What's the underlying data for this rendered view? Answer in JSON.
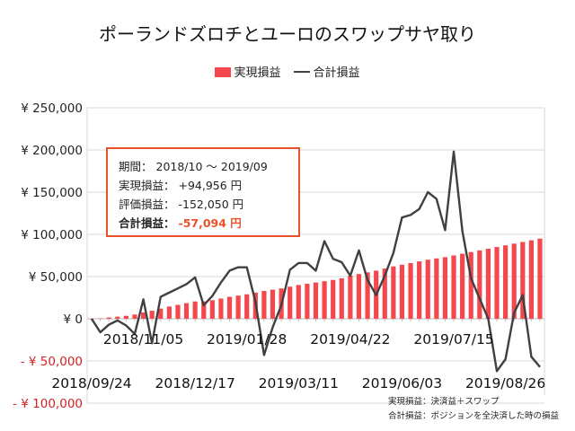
{
  "title": "ポーランドズロチとユーロのスワップサヤ取り",
  "legend": {
    "bar_label": "実現損益",
    "line_label": "合計損益"
  },
  "colors": {
    "bar": "#f4484f",
    "line": "#404040",
    "accent": "#e8522a",
    "negative_tick": "#d42020",
    "grid": "#d9d9d9"
  },
  "info_box": {
    "period_label": "期間：",
    "period_value": "2018/10 ～ 2019/09",
    "realized_label": "実現損益：",
    "realized_value": "+94,956 円",
    "unrealized_label": "評価損益：",
    "unrealized_value": "-152,050 円",
    "total_label": "合計損益：",
    "total_value": "-57,094 円"
  },
  "notes": [
    "実現損益：決済益＋スワップ",
    "合計損益：ポジションを全決済した時の損益"
  ],
  "chart_data": {
    "type": "bar+line",
    "title": "ポーランドズロチとユーロのスワップサヤ取り",
    "ylim": [
      -100000,
      250000
    ],
    "y_ticks": [
      250000,
      200000,
      150000,
      100000,
      50000,
      0,
      -50000,
      -100000
    ],
    "y_tick_labels": [
      "¥ 250,000",
      "¥ 200,000",
      "¥ 150,000",
      "¥ 100,000",
      "¥ 50,000",
      "¥ 0",
      "- ¥ 50,000",
      "- ¥ 100,000"
    ],
    "x_tick_labels": [
      "2018/09/24",
      "2018/11/05",
      "2018/12/17",
      "2019/01/28",
      "2019/03/11",
      "2019/04/22",
      "2019/06/03",
      "2019/07/15",
      "2019/08/26"
    ],
    "grid": true,
    "legend_position": "top",
    "x": [
      "2018/09/24",
      "2018/10/01",
      "2018/10/08",
      "2018/10/15",
      "2018/10/22",
      "2018/10/29",
      "2018/11/05",
      "2018/11/12",
      "2018/11/19",
      "2018/11/26",
      "2018/12/03",
      "2018/12/10",
      "2018/12/17",
      "2018/12/24",
      "2018/12/31",
      "2019/01/07",
      "2019/01/14",
      "2019/01/21",
      "2019/01/28",
      "2019/02/04",
      "2019/02/11",
      "2019/02/18",
      "2019/02/25",
      "2019/03/04",
      "2019/03/11",
      "2019/03/18",
      "2019/03/25",
      "2019/04/01",
      "2019/04/08",
      "2019/04/15",
      "2019/04/22",
      "2019/04/29",
      "2019/05/06",
      "2019/05/13",
      "2019/05/20",
      "2019/05/27",
      "2019/06/03",
      "2019/06/10",
      "2019/06/17",
      "2019/06/24",
      "2019/07/01",
      "2019/07/08",
      "2019/07/15",
      "2019/07/22",
      "2019/07/29",
      "2019/08/05",
      "2019/08/12",
      "2019/08/19",
      "2019/08/26",
      "2019/09/02",
      "2019/09/09",
      "2019/09/16",
      "2019/09/23"
    ],
    "series": [
      {
        "name": "実現損益",
        "type": "bar",
        "values": [
          0,
          500,
          1500,
          2500,
          3500,
          5000,
          7500,
          9500,
          12000,
          14500,
          16500,
          18500,
          20500,
          20500,
          22000,
          24000,
          26000,
          27500,
          29000,
          31000,
          33000,
          34500,
          36000,
          38000,
          40000,
          41500,
          43000,
          44500,
          46000,
          48000,
          51000,
          53000,
          55000,
          57000,
          59500,
          62000,
          64000,
          66000,
          68000,
          70000,
          71500,
          73000,
          75000,
          77000,
          79000,
          81000,
          83000,
          85000,
          87000,
          89000,
          91000,
          93000,
          94956
        ]
      },
      {
        "name": "合計損益",
        "type": "line",
        "values": [
          0,
          -16000,
          -7000,
          -2000,
          -8000,
          -18000,
          23000,
          -29000,
          26000,
          31000,
          36000,
          41000,
          49000,
          16000,
          27000,
          43000,
          57000,
          61000,
          61000,
          20000,
          -43000,
          -10000,
          16000,
          58000,
          66000,
          66000,
          57000,
          92000,
          71000,
          67000,
          51000,
          81000,
          46000,
          28000,
          51000,
          78000,
          120000,
          123000,
          130000,
          150000,
          142000,
          105000,
          198000,
          104000,
          48000,
          24000,
          0,
          -62000,
          -48000,
          7000,
          28000,
          -45000,
          -57094
        ]
      }
    ]
  }
}
